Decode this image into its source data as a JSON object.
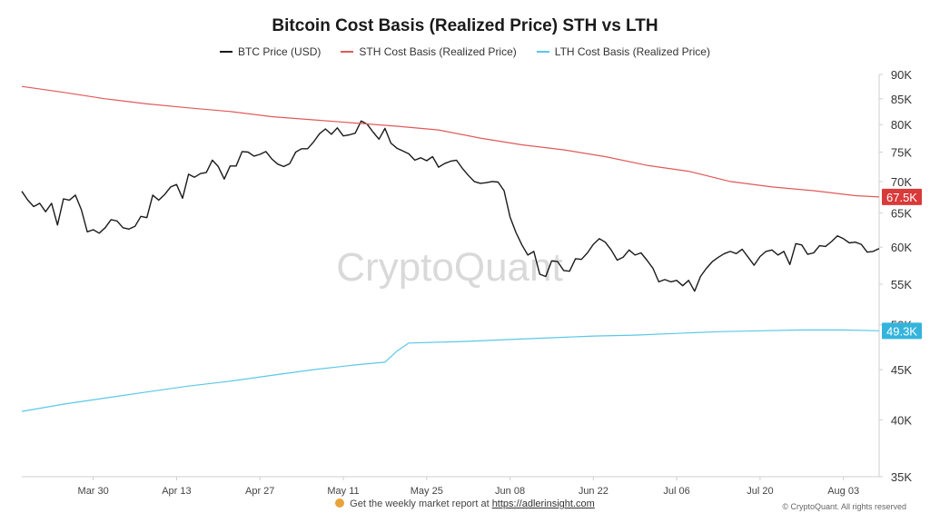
{
  "chart_data": {
    "type": "line",
    "title": "Bitcoin Cost Basis (Realized Price) STH vs LTH",
    "watermark": "CryptoQuant",
    "x_ticks": [
      "Mar 30",
      "Apr 13",
      "Apr 27",
      "May 11",
      "May 25",
      "Jun 08",
      "Jun 22",
      "Jul 06",
      "Jul 20",
      "Aug 03"
    ],
    "x_range": [
      "2024-03-18",
      "2024-08-09"
    ],
    "y_ticks": [
      "35K",
      "40K",
      "45K",
      "50K",
      "55K",
      "60K",
      "65K",
      "70K",
      "75K",
      "80K",
      "85K",
      "90K"
    ],
    "y_scale": "log",
    "ylim": [
      35000,
      90000
    ],
    "legend_position": "top-center",
    "grid": false,
    "series": [
      {
        "name": "BTC Price (USD)",
        "color": "#1a1a1a",
        "end_label": "",
        "points": [
          [
            "2024-03-18",
            68400
          ],
          [
            "2024-03-19",
            67000
          ],
          [
            "2024-03-20",
            66000
          ],
          [
            "2024-03-21",
            66500
          ],
          [
            "2024-03-22",
            65200
          ],
          [
            "2024-03-23",
            66500
          ],
          [
            "2024-03-24",
            63200
          ],
          [
            "2024-03-25",
            67200
          ],
          [
            "2024-03-26",
            67000
          ],
          [
            "2024-03-27",
            67800
          ],
          [
            "2024-03-28",
            65500
          ],
          [
            "2024-03-29",
            62200
          ],
          [
            "2024-03-30",
            62500
          ],
          [
            "2024-03-31",
            62000
          ],
          [
            "2024-04-01",
            62800
          ],
          [
            "2024-04-02",
            64000
          ],
          [
            "2024-04-03",
            63800
          ],
          [
            "2024-04-04",
            62800
          ],
          [
            "2024-04-05",
            62600
          ],
          [
            "2024-04-06",
            63000
          ],
          [
            "2024-04-07",
            64500
          ],
          [
            "2024-04-08",
            64300
          ],
          [
            "2024-04-09",
            67800
          ],
          [
            "2024-04-10",
            67000
          ],
          [
            "2024-04-11",
            67900
          ],
          [
            "2024-04-12",
            69100
          ],
          [
            "2024-04-13",
            69500
          ],
          [
            "2024-04-14",
            67300
          ],
          [
            "2024-04-15",
            71200
          ],
          [
            "2024-04-16",
            70700
          ],
          [
            "2024-04-17",
            71300
          ],
          [
            "2024-04-18",
            71500
          ],
          [
            "2024-04-19",
            73600
          ],
          [
            "2024-04-20",
            72500
          ],
          [
            "2024-04-21",
            70400
          ],
          [
            "2024-04-22",
            72600
          ],
          [
            "2024-04-23",
            72600
          ],
          [
            "2024-04-24",
            75100
          ],
          [
            "2024-04-25",
            75000
          ],
          [
            "2024-04-26",
            74300
          ],
          [
            "2024-04-27",
            74600
          ],
          [
            "2024-04-28",
            75100
          ],
          [
            "2024-04-29",
            73800
          ],
          [
            "2024-04-30",
            72900
          ],
          [
            "2024-05-01",
            72500
          ],
          [
            "2024-05-02",
            73000
          ],
          [
            "2024-05-03",
            75000
          ],
          [
            "2024-05-04",
            75600
          ],
          [
            "2024-05-05",
            75600
          ],
          [
            "2024-05-06",
            76800
          ],
          [
            "2024-05-07",
            78300
          ],
          [
            "2024-05-08",
            79200
          ],
          [
            "2024-05-09",
            78200
          ],
          [
            "2024-05-10",
            79400
          ],
          [
            "2024-05-11",
            77900
          ],
          [
            "2024-05-12",
            78100
          ],
          [
            "2024-05-13",
            78400
          ],
          [
            "2024-05-14",
            80700
          ],
          [
            "2024-05-15",
            80100
          ],
          [
            "2024-05-16",
            78600
          ],
          [
            "2024-05-17",
            77300
          ],
          [
            "2024-05-18",
            79300
          ],
          [
            "2024-05-19",
            76600
          ],
          [
            "2024-05-20",
            75700
          ],
          [
            "2024-05-21",
            75200
          ],
          [
            "2024-05-22",
            74700
          ],
          [
            "2024-05-23",
            73600
          ],
          [
            "2024-05-24",
            74000
          ],
          [
            "2024-05-25",
            73500
          ],
          [
            "2024-05-26",
            74200
          ],
          [
            "2024-05-27",
            72400
          ],
          [
            "2024-05-28",
            73000
          ],
          [
            "2024-05-29",
            73400
          ],
          [
            "2024-05-30",
            73600
          ],
          [
            "2024-05-31",
            72200
          ],
          [
            "2024-06-01",
            71000
          ],
          [
            "2024-06-02",
            70000
          ],
          [
            "2024-06-03",
            69700
          ],
          [
            "2024-06-04",
            69800
          ],
          [
            "2024-06-05",
            70000
          ],
          [
            "2024-06-06",
            69900
          ],
          [
            "2024-06-07",
            68500
          ],
          [
            "2024-06-08",
            64400
          ],
          [
            "2024-06-09",
            62100
          ],
          [
            "2024-06-10",
            60300
          ],
          [
            "2024-06-11",
            58900
          ],
          [
            "2024-06-12",
            59400
          ],
          [
            "2024-06-13",
            56300
          ],
          [
            "2024-06-14",
            56000
          ],
          [
            "2024-06-15",
            58100
          ],
          [
            "2024-06-16",
            58000
          ],
          [
            "2024-06-17",
            56800
          ],
          [
            "2024-06-18",
            56700
          ],
          [
            "2024-06-19",
            58400
          ],
          [
            "2024-06-20",
            58300
          ],
          [
            "2024-06-21",
            59200
          ],
          [
            "2024-06-22",
            60400
          ],
          [
            "2024-06-23",
            61200
          ],
          [
            "2024-06-24",
            60700
          ],
          [
            "2024-06-25",
            59600
          ],
          [
            "2024-06-26",
            58200
          ],
          [
            "2024-06-27",
            58600
          ],
          [
            "2024-06-28",
            59600
          ],
          [
            "2024-06-29",
            58900
          ],
          [
            "2024-06-30",
            59200
          ],
          [
            "2024-07-01",
            58200
          ],
          [
            "2024-07-02",
            57100
          ],
          [
            "2024-07-03",
            55300
          ],
          [
            "2024-07-04",
            55600
          ],
          [
            "2024-07-05",
            55300
          ],
          [
            "2024-07-06",
            55500
          ],
          [
            "2024-07-07",
            54800
          ],
          [
            "2024-07-08",
            55500
          ],
          [
            "2024-07-09",
            54100
          ],
          [
            "2024-07-10",
            56000
          ],
          [
            "2024-07-11",
            57100
          ],
          [
            "2024-07-12",
            58000
          ],
          [
            "2024-07-13",
            58600
          ],
          [
            "2024-07-14",
            59100
          ],
          [
            "2024-07-15",
            59400
          ],
          [
            "2024-07-16",
            59100
          ],
          [
            "2024-07-17",
            59700
          ],
          [
            "2024-07-18",
            58600
          ],
          [
            "2024-07-19",
            57500
          ],
          [
            "2024-07-20",
            58700
          ],
          [
            "2024-07-21",
            59400
          ],
          [
            "2024-07-22",
            59600
          ],
          [
            "2024-07-23",
            58900
          ],
          [
            "2024-07-24",
            59400
          ],
          [
            "2024-07-25",
            57600
          ],
          [
            "2024-07-26",
            60500
          ],
          [
            "2024-07-27",
            60300
          ],
          [
            "2024-07-28",
            59000
          ],
          [
            "2024-07-29",
            59200
          ],
          [
            "2024-07-30",
            60200
          ],
          [
            "2024-07-31",
            60100
          ],
          [
            "2024-08-01",
            60800
          ],
          [
            "2024-08-02",
            61600
          ],
          [
            "2024-08-03",
            61200
          ],
          [
            "2024-08-04",
            60600
          ],
          [
            "2024-08-05",
            60700
          ],
          [
            "2024-08-06",
            60400
          ],
          [
            "2024-08-07",
            59300
          ],
          [
            "2024-08-08",
            59400
          ],
          [
            "2024-08-09",
            59800
          ]
        ]
      },
      {
        "name": "STH Cost Basis (Realized Price)",
        "color": "#e05a5a",
        "end_label": "67.5K",
        "points": [
          [
            "2024-03-18",
            87500
          ],
          [
            "2024-03-25",
            86300
          ],
          [
            "2024-04-01",
            85000
          ],
          [
            "2024-04-08",
            84000
          ],
          [
            "2024-04-15",
            83200
          ],
          [
            "2024-04-22",
            82500
          ],
          [
            "2024-04-29",
            81500
          ],
          [
            "2024-05-06",
            80900
          ],
          [
            "2024-05-13",
            80300
          ],
          [
            "2024-05-20",
            79700
          ],
          [
            "2024-05-27",
            79000
          ],
          [
            "2024-06-03",
            77500
          ],
          [
            "2024-06-10",
            76300
          ],
          [
            "2024-06-17",
            75400
          ],
          [
            "2024-06-24",
            74200
          ],
          [
            "2024-07-01",
            72700
          ],
          [
            "2024-07-08",
            71700
          ],
          [
            "2024-07-15",
            70000
          ],
          [
            "2024-07-22",
            69100
          ],
          [
            "2024-07-29",
            68500
          ],
          [
            "2024-08-05",
            67700
          ],
          [
            "2024-08-09",
            67500
          ]
        ]
      },
      {
        "name": "LTH Cost Basis (Realized Price)",
        "color": "#5bc8e6",
        "end_label": "49.3K",
        "points": [
          [
            "2024-03-18",
            40800
          ],
          [
            "2024-03-25",
            41500
          ],
          [
            "2024-04-01",
            42100
          ],
          [
            "2024-04-08",
            42700
          ],
          [
            "2024-04-15",
            43300
          ],
          [
            "2024-04-22",
            43800
          ],
          [
            "2024-04-29",
            44400
          ],
          [
            "2024-05-06",
            45000
          ],
          [
            "2024-05-13",
            45500
          ],
          [
            "2024-05-18",
            45800
          ],
          [
            "2024-05-20",
            47000
          ],
          [
            "2024-05-22",
            47900
          ],
          [
            "2024-06-01",
            48100
          ],
          [
            "2024-06-08",
            48300
          ],
          [
            "2024-06-15",
            48500
          ],
          [
            "2024-06-22",
            48700
          ],
          [
            "2024-06-29",
            48800
          ],
          [
            "2024-07-06",
            49000
          ],
          [
            "2024-07-13",
            49200
          ],
          [
            "2024-07-20",
            49300
          ],
          [
            "2024-07-27",
            49400
          ],
          [
            "2024-08-03",
            49400
          ],
          [
            "2024-08-09",
            49300
          ]
        ]
      }
    ]
  },
  "footer": {
    "text": "Get the weekly market report at",
    "link": "https://adlerinsight.com",
    "copyright": "© CryptoQuant. All rights reserved"
  }
}
